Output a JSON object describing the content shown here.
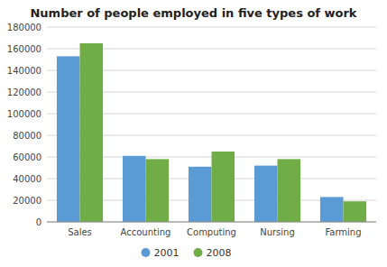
{
  "chart_data": {
    "type": "bar",
    "title": "Number of people employed in five types of work",
    "categories": [
      "Sales",
      "Accounting",
      "Computing",
      "Nursing",
      "Farming"
    ],
    "series": [
      {
        "name": "2001",
        "color": "#5b9bd5",
        "values": [
          153000,
          61000,
          51000,
          52000,
          23000
        ]
      },
      {
        "name": "2008",
        "color": "#70ad47",
        "values": [
          165000,
          58000,
          65000,
          58000,
          19000
        ]
      }
    ],
    "ylim": [
      0,
      180000
    ],
    "yticks": [
      0,
      20000,
      40000,
      60000,
      80000,
      100000,
      120000,
      140000,
      160000,
      180000
    ],
    "grid": true,
    "legend": "bottom"
  }
}
